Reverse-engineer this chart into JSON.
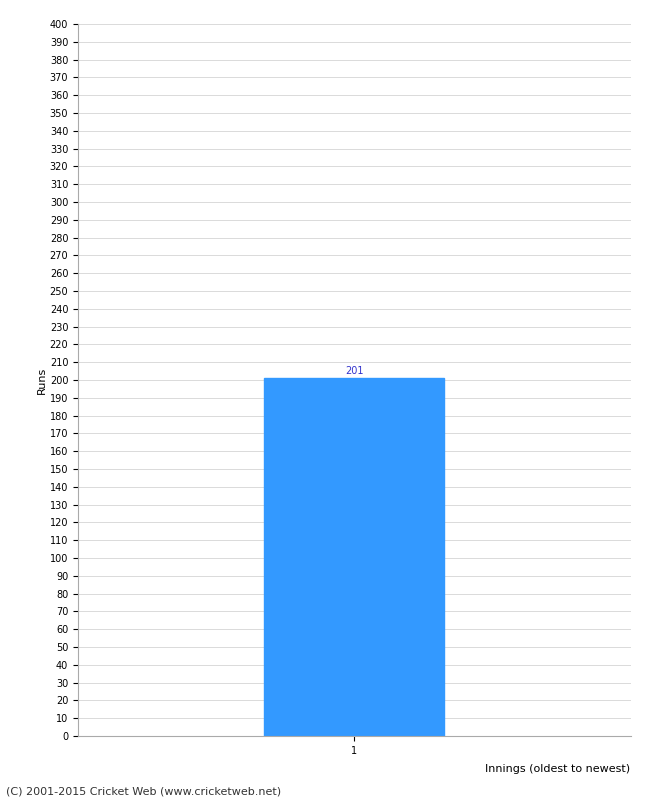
{
  "bar_values": [
    201
  ],
  "bar_positions": [
    1
  ],
  "bar_color": "#3399ff",
  "bar_width": 0.65,
  "ylabel": "Runs",
  "xlabel_right": "Innings (oldest to newest)",
  "ylim": [
    0,
    400
  ],
  "xtick_labels": [
    "1"
  ],
  "background_color": "#ffffff",
  "plot_bg_color": "#ffffff",
  "grid_color": "#cccccc",
  "bar_label_color": "#3333cc",
  "text_color": "#000000",
  "footer_text": "(C) 2001-2015 Cricket Web (www.cricketweb.net)",
  "ylabel_fontsize": 8,
  "footer_fontsize": 8,
  "tick_fontsize": 7,
  "bar_label_fontsize": 7,
  "xlabel_fontsize": 8
}
